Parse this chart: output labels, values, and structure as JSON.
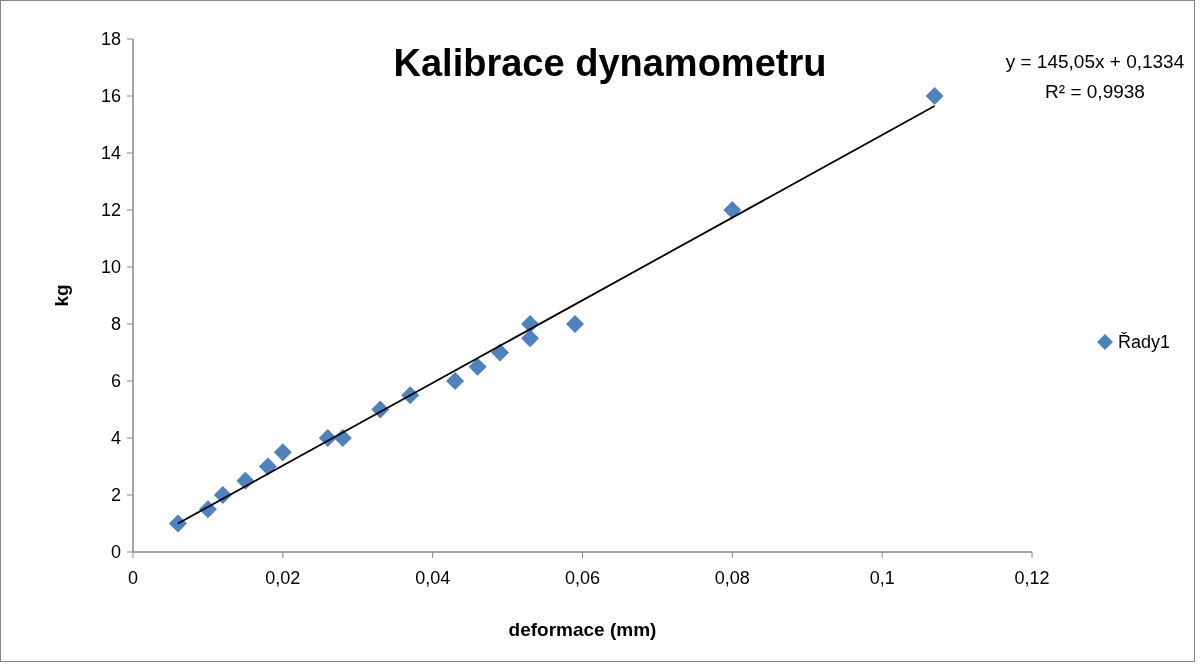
{
  "chart_data": {
    "type": "scatter",
    "title": "Kalibrace dynamometru",
    "xlabel": "deformace (mm)",
    "ylabel": "kg",
    "annotations": [
      "y = 145,05x + 0,1334",
      "R² = 0,9938"
    ],
    "xlim": [
      0,
      0.12
    ],
    "xticks": [
      0,
      {
        "value": 0.02,
        "label": "0,02"
      },
      {
        "value": 0.04,
        "label": "0,04"
      },
      {
        "value": 0.06,
        "label": "0,06"
      },
      {
        "value": 0.08,
        "label": "0,08"
      },
      {
        "value": 0.1,
        "label": "0,1"
      },
      {
        "value": 0.12,
        "label": "0,12"
      }
    ],
    "ylim": [
      0,
      18
    ],
    "yticks": [
      0,
      2,
      4,
      6,
      8,
      10,
      12,
      14,
      16,
      18
    ],
    "legend": "right",
    "grid": false,
    "series": [
      {
        "name": "Řady1",
        "marker": "diamond",
        "color": "#4f81bd",
        "x": [
          0.006,
          0.01,
          0.012,
          0.015,
          0.018,
          0.02,
          0.026,
          0.028,
          0.033,
          0.037,
          0.043,
          0.046,
          0.049,
          0.053,
          0.053,
          0.059,
          0.08,
          0.107
        ],
        "values": [
          1,
          1.5,
          2,
          2.5,
          3,
          3.5,
          4,
          4,
          5,
          5.5,
          6,
          6.5,
          7,
          8,
          7.5,
          8,
          12,
          16
        ]
      },
      {
        "type": "line",
        "marker": "none",
        "color": "#000000",
        "x": [
          0.006,
          0.107
        ],
        "values": [
          1.0,
          15.65
        ]
      }
    ]
  }
}
